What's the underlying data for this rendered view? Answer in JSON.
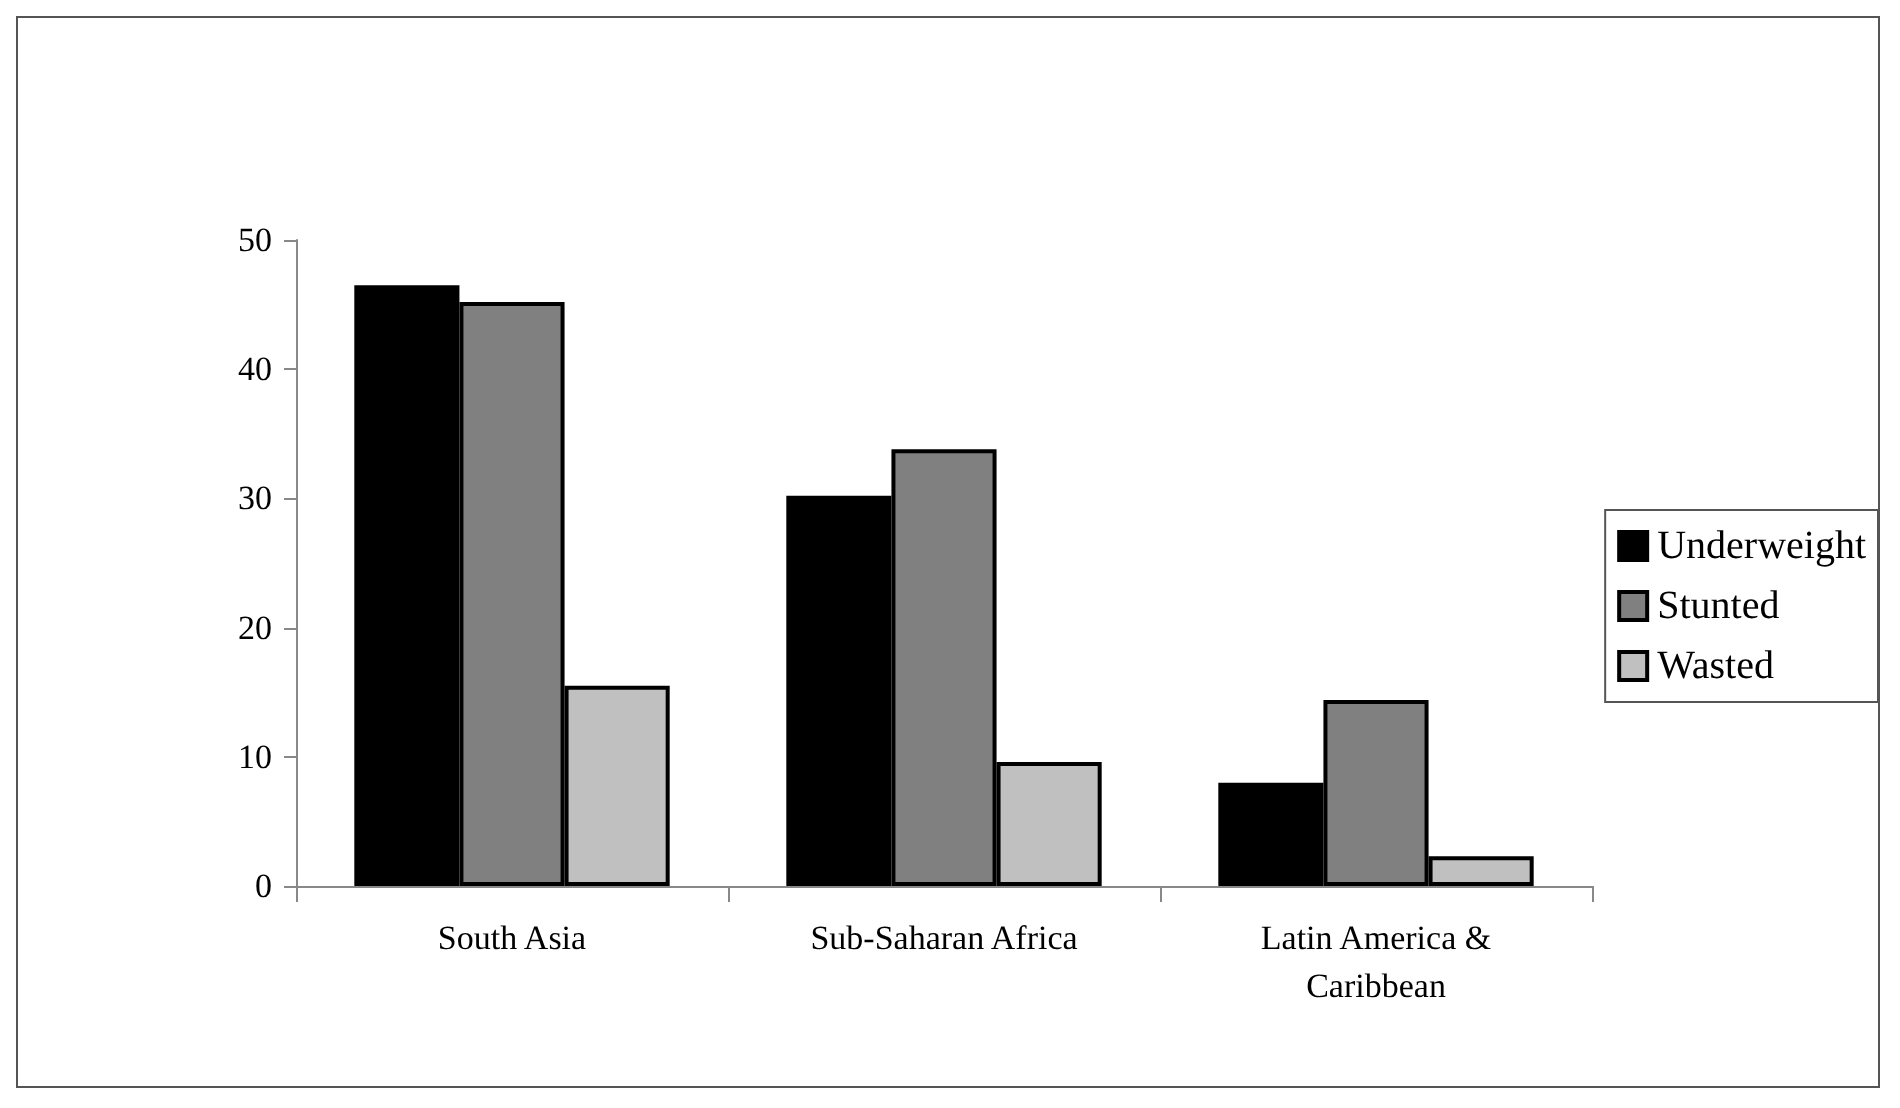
{
  "chart_data": {
    "type": "bar",
    "categories": [
      "South Asia",
      "Sub-Saharan Africa",
      "Latin America &\nCaribbean"
    ],
    "series": [
      {
        "name": "Underweight",
        "color": "#000000",
        "values": [
          46.5,
          30.2,
          8.0
        ]
      },
      {
        "name": "Stunted",
        "color": "#808080",
        "values": [
          45.2,
          33.8,
          14.4
        ]
      },
      {
        "name": "Wasted",
        "color": "#c0c0c0",
        "values": [
          15.5,
          9.6,
          2.3
        ]
      }
    ],
    "ylim": [
      0,
      50
    ],
    "yticks": [
      0,
      10,
      20,
      30,
      40,
      50
    ],
    "grid": false,
    "legend": "right"
  }
}
